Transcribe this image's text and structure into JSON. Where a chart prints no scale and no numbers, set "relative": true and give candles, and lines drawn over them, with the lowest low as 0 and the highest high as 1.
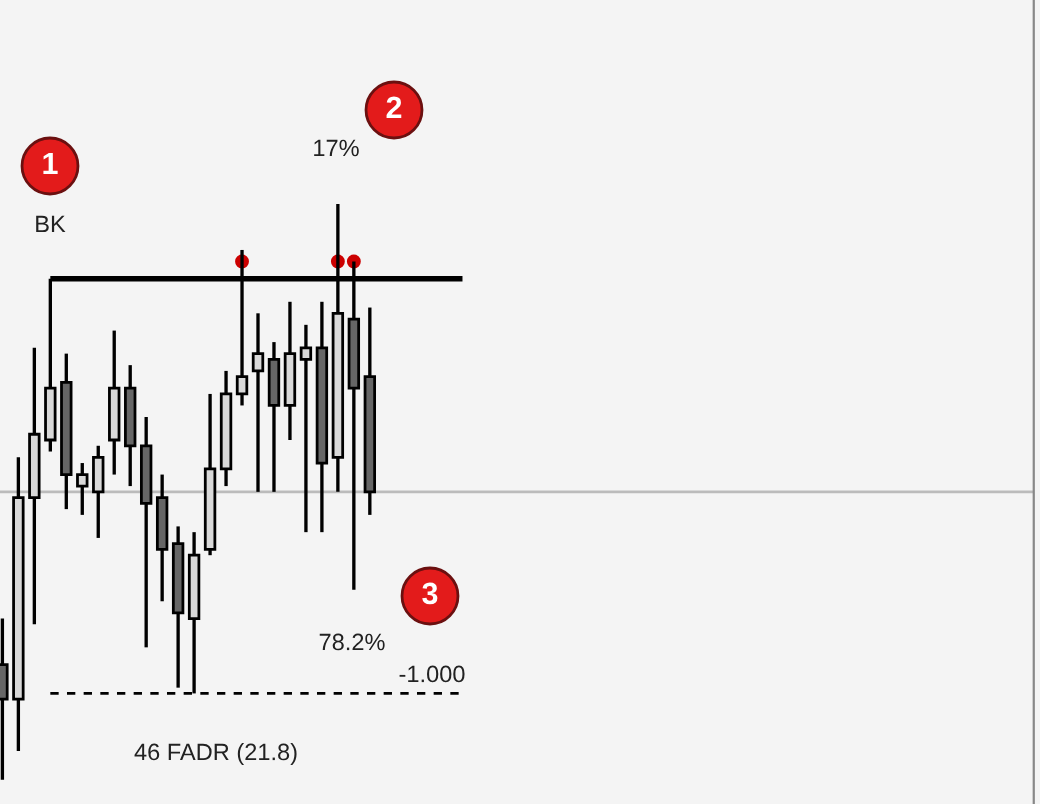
{
  "chart_data": {
    "type": "candlestick",
    "relative": true,
    "categories": [
      null,
      null,
      null,
      null,
      null,
      null,
      null,
      null,
      null,
      null,
      null,
      null,
      null,
      null,
      null,
      null,
      null,
      null,
      null,
      null,
      null,
      null,
      null,
      null
    ],
    "ohlc": [
      [
        0.2,
        0.28,
        0,
        0.14
      ],
      [
        0.14,
        0.56,
        0.05,
        0.49
      ],
      [
        0.49,
        0.75,
        0.27,
        0.6
      ],
      [
        0.59,
        0.87,
        0.57,
        0.68
      ],
      [
        0.69,
        0.74,
        0.47,
        0.53
      ],
      [
        0.51,
        0.55,
        0.46,
        0.53
      ],
      [
        0.5,
        0.58,
        0.42,
        0.56
      ],
      [
        0.59,
        0.78,
        0.53,
        0.68
      ],
      [
        0.68,
        0.72,
        0.51,
        0.58
      ],
      [
        0.58,
        0.63,
        0.23,
        0.48
      ],
      [
        0.49,
        0.53,
        0.31,
        0.4
      ],
      [
        0.41,
        0.44,
        0.16,
        0.29
      ],
      [
        0.28,
        0.43,
        0.15,
        0.39
      ],
      [
        0.4,
        0.67,
        0.39,
        0.54
      ],
      [
        0.54,
        0.71,
        0.51,
        0.67
      ],
      [
        0.67,
        0.92,
        0.65,
        0.7
      ],
      [
        0.71,
        0.81,
        0.5,
        0.74
      ],
      [
        0.73,
        0.76,
        0.5,
        0.65
      ],
      [
        0.65,
        0.83,
        0.59,
        0.74
      ],
      [
        0.73,
        0.79,
        0.43,
        0.75
      ],
      [
        0.75,
        0.83,
        0.43,
        0.55
      ],
      [
        0.56,
        1,
        0.5,
        0.81
      ],
      [
        0.8,
        0.9,
        0.33,
        0.68
      ],
      [
        0.7,
        0.82,
        0.46,
        0.5
      ]
    ],
    "colors": [
      "#666666",
      "#d9d9d9",
      "#d9d9d9",
      "#d9d9d9",
      "#666666",
      "#d9d9d9",
      "#d9d9d9",
      "#d9d9d9",
      "#666666",
      "#666666",
      "#666666",
      "#666666",
      "#d9d9d9",
      "#d9d9d9",
      "#d9d9d9",
      "#d9d9d9",
      "#d9d9d9",
      "#666666",
      "#d9d9d9",
      "#d9d9d9",
      "#666666",
      "#d9d9d9",
      "#666666",
      "#666666"
    ],
    "series": [
      {
        "type": "scatter",
        "color": "#cc0000",
        "values": [
          null,
          null,
          null,
          null,
          null,
          null,
          null,
          null,
          null,
          null,
          null,
          null,
          null,
          null,
          null,
          0.9,
          null,
          null,
          null,
          null,
          null,
          0.9,
          0.9,
          null
        ]
      }
    ],
    "ref_lines": [
      {
        "axis": "y",
        "value": 0.87,
        "color": "#000000",
        "line_style": "solid"
      },
      {
        "axis": "y",
        "value": 0.15,
        "color": "#000000",
        "line_style": "dashed"
      },
      {
        "axis": "y",
        "value": 0.5,
        "color": "#bbbbbb",
        "line_style": "solid"
      }
    ],
    "annotations": [
      "1",
      "BK",
      "2",
      "17%",
      "3",
      "78.2%",
      "-1.000",
      "46 FADR (21.8)"
    ]
  }
}
